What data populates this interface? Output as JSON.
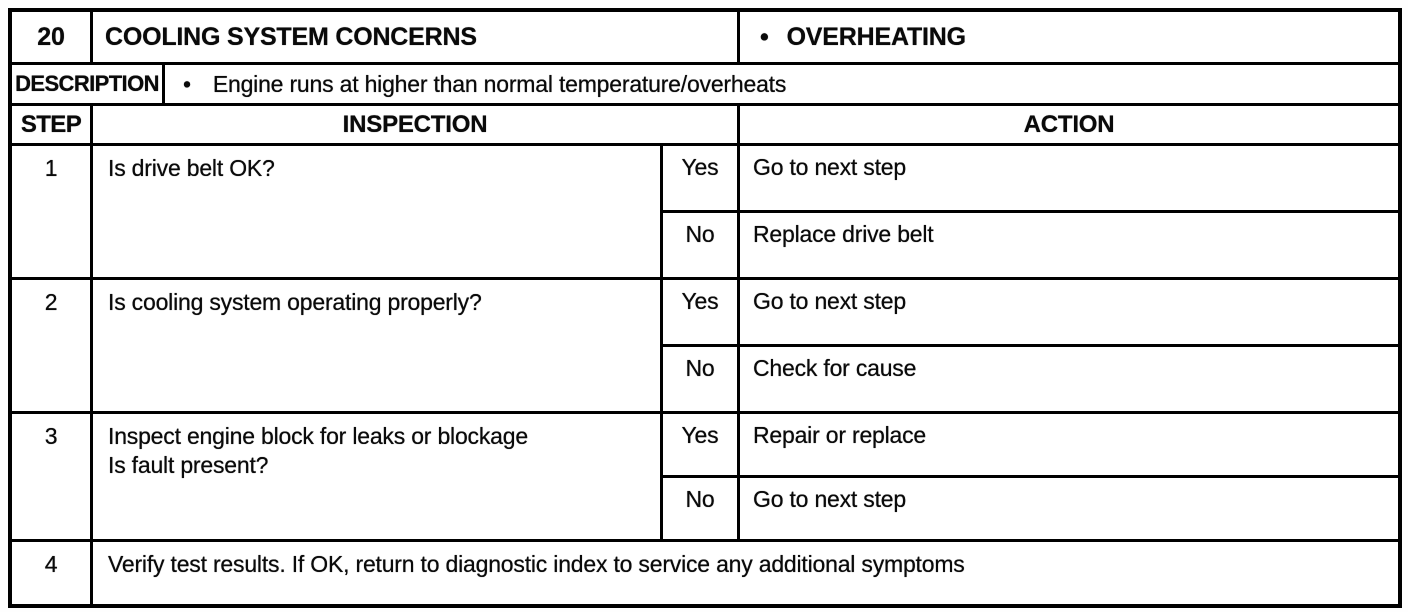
{
  "table": {
    "number": "20",
    "title": "COOLING SYSTEM CONCERNS",
    "bullet": "•",
    "symptom": "OVERHEATING",
    "description_label": "DESCRIPTION",
    "description": "Engine runs at higher than normal temperature/overheats",
    "headers": {
      "step": "STEP",
      "inspection": "INSPECTION",
      "action": "ACTION"
    },
    "steps": [
      {
        "num": "1",
        "inspection": "Is drive belt OK?",
        "branches": [
          {
            "answer": "Yes",
            "action": "Go to next step"
          },
          {
            "answer": "No",
            "action": "Replace drive belt"
          }
        ]
      },
      {
        "num": "2",
        "inspection": "Is cooling system operating properly?",
        "branches": [
          {
            "answer": "Yes",
            "action": "Go to next step"
          },
          {
            "answer": "No",
            "action": "Check for cause"
          }
        ]
      },
      {
        "num": "3",
        "inspection": "Inspect engine block for leaks or blockage\nIs fault present?",
        "branches": [
          {
            "answer": "Yes",
            "action": "Repair or replace"
          },
          {
            "answer": "No",
            "action": "Go to next step"
          }
        ]
      },
      {
        "num": "4",
        "inspection": "Verify test results. If OK, return to diagnostic index to service any additional symptoms"
      }
    ]
  },
  "colors": {
    "border": "#000000",
    "text": "#0a0a0a",
    "background": "#ffffff"
  }
}
